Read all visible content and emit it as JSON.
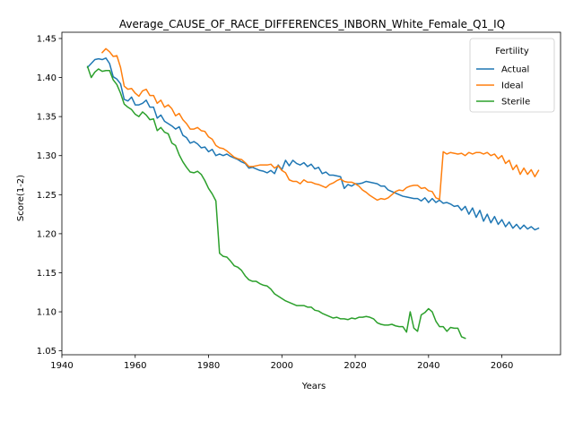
{
  "chart_data": {
    "type": "line",
    "title": "Average_CAUSE_OF_RACE_DIFFERENCES_INBORN_White_Female_Q1_IQ",
    "xlabel": "Years",
    "ylabel": "Score(1-2)",
    "xlim": [
      1940,
      2076
    ],
    "ylim": [
      1.045,
      1.458
    ],
    "xticks": [
      1940,
      1960,
      1980,
      2000,
      2020,
      2040,
      2060
    ],
    "yticks": [
      1.05,
      1.1,
      1.15,
      1.2,
      1.25,
      1.3,
      1.35,
      1.4,
      1.45
    ],
    "grid": false,
    "legend": {
      "title": "Fertility",
      "placement": "top-right"
    },
    "series": [
      {
        "name": "Actual",
        "color": "#1f77b4",
        "x": [
          1947,
          1948,
          1949,
          1950,
          1951,
          1952,
          1953,
          1954,
          1955,
          1956,
          1957,
          1958,
          1959,
          1960,
          1961,
          1962,
          1963,
          1964,
          1965,
          1966,
          1967,
          1968,
          1969,
          1970,
          1971,
          1972,
          1973,
          1974,
          1975,
          1976,
          1977,
          1978,
          1979,
          1980,
          1981,
          1982,
          1983,
          1984,
          1985,
          1986,
          1987,
          1988,
          1989,
          1990,
          1991,
          1992,
          1993,
          1994,
          1995,
          1996,
          1997,
          1998,
          1999,
          2000,
          2001,
          2002,
          2003,
          2004,
          2005,
          2006,
          2007,
          2008,
          2009,
          2010,
          2011,
          2012,
          2013,
          2014,
          2015,
          2016,
          2017,
          2018,
          2019,
          2020,
          2021,
          2022,
          2023,
          2024,
          2025,
          2026,
          2027,
          2028,
          2029,
          2030,
          2031,
          2032,
          2033,
          2034,
          2035,
          2036,
          2037,
          2038,
          2039,
          2040,
          2041,
          2042,
          2043,
          2044,
          2045,
          2046,
          2047,
          2048,
          2049,
          2050,
          2051,
          2052,
          2053,
          2054,
          2055,
          2056,
          2057,
          2058,
          2059,
          2060,
          2061,
          2062,
          2063,
          2064,
          2065,
          2066,
          2067,
          2068,
          2069,
          2070
        ],
        "values": [
          1.413,
          1.418,
          1.423,
          1.424,
          1.423,
          1.425,
          1.418,
          1.401,
          1.398,
          1.392,
          1.372,
          1.37,
          1.375,
          1.365,
          1.365,
          1.367,
          1.371,
          1.362,
          1.362,
          1.348,
          1.352,
          1.344,
          1.341,
          1.338,
          1.334,
          1.337,
          1.326,
          1.323,
          1.316,
          1.318,
          1.315,
          1.31,
          1.311,
          1.305,
          1.308,
          1.3,
          1.302,
          1.3,
          1.302,
          1.299,
          1.297,
          1.295,
          1.292,
          1.29,
          1.284,
          1.285,
          1.283,
          1.281,
          1.28,
          1.278,
          1.281,
          1.277,
          1.288,
          1.282,
          1.294,
          1.287,
          1.294,
          1.29,
          1.288,
          1.291,
          1.286,
          1.289,
          1.283,
          1.285,
          1.277,
          1.279,
          1.275,
          1.275,
          1.274,
          1.273,
          1.258,
          1.263,
          1.261,
          1.264,
          1.264,
          1.265,
          1.267,
          1.266,
          1.265,
          1.264,
          1.261,
          1.261,
          1.256,
          1.254,
          1.252,
          1.25,
          1.248,
          1.247,
          1.246,
          1.245,
          1.245,
          1.242,
          1.246,
          1.24,
          1.245,
          1.24,
          1.243,
          1.239,
          1.24,
          1.238,
          1.235,
          1.236,
          1.23,
          1.235,
          1.225,
          1.233,
          1.221,
          1.23,
          1.216,
          1.225,
          1.214,
          1.222,
          1.212,
          1.218,
          1.209,
          1.215,
          1.207,
          1.212,
          1.206,
          1.211,
          1.206,
          1.209,
          1.205,
          1.207
        ]
      },
      {
        "name": "Ideal",
        "color": "#ff7f0e",
        "x": [
          1951,
          1952,
          1953,
          1954,
          1955,
          1956,
          1957,
          1958,
          1959,
          1960,
          1961,
          1962,
          1963,
          1964,
          1965,
          1966,
          1967,
          1968,
          1969,
          1970,
          1971,
          1972,
          1973,
          1974,
          1975,
          1976,
          1977,
          1978,
          1979,
          1980,
          1981,
          1982,
          1983,
          1984,
          1985,
          1986,
          1987,
          1988,
          1989,
          1990,
          1991,
          1992,
          1993,
          1994,
          1995,
          1996,
          1997,
          1998,
          1999,
          2000,
          2001,
          2002,
          2003,
          2004,
          2005,
          2006,
          2007,
          2008,
          2009,
          2010,
          2011,
          2012,
          2013,
          2014,
          2015,
          2016,
          2017,
          2018,
          2019,
          2020,
          2021,
          2022,
          2023,
          2024,
          2025,
          2026,
          2027,
          2028,
          2029,
          2030,
          2031,
          2032,
          2033,
          2034,
          2035,
          2036,
          2037,
          2038,
          2039,
          2040,
          2041,
          2042,
          2043,
          2044,
          2045,
          2046,
          2047,
          2048,
          2049,
          2050,
          2051,
          2052,
          2053,
          2054,
          2055,
          2056,
          2057,
          2058,
          2059,
          2060,
          2061,
          2062,
          2063,
          2064,
          2065,
          2066,
          2067,
          2068,
          2069,
          2070
        ],
        "values": [
          1.432,
          1.437,
          1.433,
          1.427,
          1.428,
          1.413,
          1.389,
          1.385,
          1.386,
          1.38,
          1.376,
          1.383,
          1.385,
          1.377,
          1.377,
          1.367,
          1.371,
          1.362,
          1.365,
          1.36,
          1.351,
          1.354,
          1.346,
          1.341,
          1.334,
          1.334,
          1.336,
          1.332,
          1.331,
          1.324,
          1.321,
          1.313,
          1.31,
          1.309,
          1.306,
          1.302,
          1.298,
          1.296,
          1.295,
          1.291,
          1.286,
          1.286,
          1.287,
          1.288,
          1.288,
          1.288,
          1.289,
          1.284,
          1.287,
          1.281,
          1.278,
          1.269,
          1.267,
          1.267,
          1.264,
          1.269,
          1.266,
          1.266,
          1.264,
          1.263,
          1.261,
          1.259,
          1.263,
          1.265,
          1.268,
          1.27,
          1.267,
          1.266,
          1.266,
          1.264,
          1.261,
          1.256,
          1.253,
          1.249,
          1.246,
          1.243,
          1.245,
          1.244,
          1.246,
          1.25,
          1.254,
          1.256,
          1.255,
          1.259,
          1.261,
          1.262,
          1.262,
          1.258,
          1.259,
          1.255,
          1.254,
          1.246,
          1.244,
          1.305,
          1.302,
          1.304,
          1.303,
          1.302,
          1.303,
          1.3,
          1.304,
          1.302,
          1.304,
          1.304,
          1.302,
          1.304,
          1.3,
          1.302,
          1.296,
          1.3,
          1.29,
          1.294,
          1.282,
          1.288,
          1.276,
          1.284,
          1.276,
          1.282,
          1.273,
          1.281
        ]
      },
      {
        "name": "Sterile",
        "color": "#2ca02c",
        "x": [
          1947,
          1948,
          1949,
          1950,
          1951,
          1952,
          1953,
          1954,
          1955,
          1956,
          1957,
          1958,
          1959,
          1960,
          1961,
          1962,
          1963,
          1964,
          1965,
          1966,
          1967,
          1968,
          1969,
          1970,
          1971,
          1972,
          1973,
          1974,
          1975,
          1976,
          1977,
          1978,
          1979,
          1980,
          1981,
          1982,
          1983,
          1984,
          1985,
          1986,
          1987,
          1988,
          1989,
          1990,
          1991,
          1992,
          1993,
          1994,
          1995,
          1996,
          1997,
          1998,
          1999,
          2000,
          2001,
          2002,
          2003,
          2004,
          2005,
          2006,
          2007,
          2008,
          2009,
          2010,
          2011,
          2012,
          2013,
          2014,
          2015,
          2016,
          2017,
          2018,
          2019,
          2020,
          2021,
          2022,
          2023,
          2024,
          2025,
          2026,
          2027,
          2028,
          2029,
          2030,
          2031,
          2032,
          2033,
          2034,
          2035,
          2036,
          2037,
          2038,
          2039,
          2040,
          2041,
          2042,
          2043,
          2044,
          2045,
          2046,
          2047,
          2048,
          2049,
          2050
        ],
        "values": [
          1.414,
          1.4,
          1.407,
          1.411,
          1.408,
          1.409,
          1.409,
          1.397,
          1.391,
          1.38,
          1.366,
          1.362,
          1.359,
          1.353,
          1.35,
          1.356,
          1.352,
          1.346,
          1.347,
          1.332,
          1.336,
          1.33,
          1.328,
          1.316,
          1.313,
          1.301,
          1.292,
          1.285,
          1.279,
          1.278,
          1.28,
          1.276,
          1.268,
          1.258,
          1.251,
          1.242,
          1.175,
          1.171,
          1.17,
          1.165,
          1.159,
          1.157,
          1.153,
          1.146,
          1.141,
          1.139,
          1.139,
          1.136,
          1.134,
          1.133,
          1.129,
          1.123,
          1.12,
          1.117,
          1.114,
          1.112,
          1.11,
          1.108,
          1.108,
          1.108,
          1.106,
          1.106,
          1.102,
          1.101,
          1.098,
          1.096,
          1.094,
          1.092,
          1.093,
          1.091,
          1.091,
          1.09,
          1.092,
          1.091,
          1.093,
          1.093,
          1.094,
          1.093,
          1.091,
          1.086,
          1.084,
          1.083,
          1.083,
          1.084,
          1.082,
          1.081,
          1.081,
          1.074,
          1.1,
          1.079,
          1.075,
          1.096,
          1.099,
          1.104,
          1.1,
          1.088,
          1.081,
          1.081,
          1.075,
          1.08,
          1.079,
          1.079,
          1.068,
          1.066
        ]
      }
    ]
  }
}
